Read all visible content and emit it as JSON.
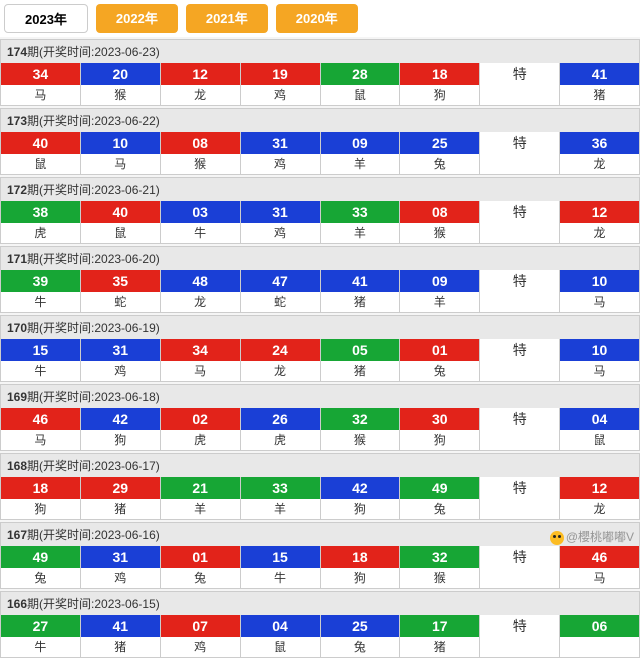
{
  "colors": {
    "red": "#e2231a",
    "blue": "#1a3fd6",
    "green": "#17a635",
    "orange": "#f5a623"
  },
  "tabs": [
    {
      "label": "2023年",
      "active": true
    },
    {
      "label": "2022年",
      "active": false
    },
    {
      "label": "2021年",
      "active": false
    },
    {
      "label": "2020年",
      "active": false
    }
  ],
  "special_label": "特",
  "header_prefix": "期(开奖时间:",
  "header_suffix": ")",
  "watermark": "@櫻桃嘟嘟V",
  "periods": [
    {
      "no": "174",
      "date": "2023-06-23",
      "balls": [
        {
          "n": "34",
          "z": "马",
          "c": "red"
        },
        {
          "n": "20",
          "z": "猴",
          "c": "blue"
        },
        {
          "n": "12",
          "z": "龙",
          "c": "red"
        },
        {
          "n": "19",
          "z": "鸡",
          "c": "red"
        },
        {
          "n": "28",
          "z": "鼠",
          "c": "green"
        },
        {
          "n": "18",
          "z": "狗",
          "c": "red"
        }
      ],
      "special": {
        "n": "41",
        "z": "猪",
        "c": "blue"
      }
    },
    {
      "no": "173",
      "date": "2023-06-22",
      "balls": [
        {
          "n": "40",
          "z": "鼠",
          "c": "red"
        },
        {
          "n": "10",
          "z": "马",
          "c": "blue"
        },
        {
          "n": "08",
          "z": "猴",
          "c": "red"
        },
        {
          "n": "31",
          "z": "鸡",
          "c": "blue"
        },
        {
          "n": "09",
          "z": "羊",
          "c": "blue"
        },
        {
          "n": "25",
          "z": "兔",
          "c": "blue"
        }
      ],
      "special": {
        "n": "36",
        "z": "龙",
        "c": "blue"
      }
    },
    {
      "no": "172",
      "date": "2023-06-21",
      "balls": [
        {
          "n": "38",
          "z": "虎",
          "c": "green"
        },
        {
          "n": "40",
          "z": "鼠",
          "c": "red"
        },
        {
          "n": "03",
          "z": "牛",
          "c": "blue"
        },
        {
          "n": "31",
          "z": "鸡",
          "c": "blue"
        },
        {
          "n": "33",
          "z": "羊",
          "c": "green"
        },
        {
          "n": "08",
          "z": "猴",
          "c": "red"
        }
      ],
      "special": {
        "n": "12",
        "z": "龙",
        "c": "red"
      }
    },
    {
      "no": "171",
      "date": "2023-06-20",
      "balls": [
        {
          "n": "39",
          "z": "牛",
          "c": "green"
        },
        {
          "n": "35",
          "z": "蛇",
          "c": "red"
        },
        {
          "n": "48",
          "z": "龙",
          "c": "blue"
        },
        {
          "n": "47",
          "z": "蛇",
          "c": "blue"
        },
        {
          "n": "41",
          "z": "猪",
          "c": "blue"
        },
        {
          "n": "09",
          "z": "羊",
          "c": "blue"
        }
      ],
      "special": {
        "n": "10",
        "z": "马",
        "c": "blue"
      }
    },
    {
      "no": "170",
      "date": "2023-06-19",
      "balls": [
        {
          "n": "15",
          "z": "牛",
          "c": "blue"
        },
        {
          "n": "31",
          "z": "鸡",
          "c": "blue"
        },
        {
          "n": "34",
          "z": "马",
          "c": "red"
        },
        {
          "n": "24",
          "z": "龙",
          "c": "red"
        },
        {
          "n": "05",
          "z": "猪",
          "c": "green"
        },
        {
          "n": "01",
          "z": "兔",
          "c": "red"
        }
      ],
      "special": {
        "n": "10",
        "z": "马",
        "c": "blue"
      }
    },
    {
      "no": "169",
      "date": "2023-06-18",
      "balls": [
        {
          "n": "46",
          "z": "马",
          "c": "red"
        },
        {
          "n": "42",
          "z": "狗",
          "c": "blue"
        },
        {
          "n": "02",
          "z": "虎",
          "c": "red"
        },
        {
          "n": "26",
          "z": "虎",
          "c": "blue"
        },
        {
          "n": "32",
          "z": "猴",
          "c": "green"
        },
        {
          "n": "30",
          "z": "狗",
          "c": "red"
        }
      ],
      "special": {
        "n": "04",
        "z": "鼠",
        "c": "blue"
      }
    },
    {
      "no": "168",
      "date": "2023-06-17",
      "balls": [
        {
          "n": "18",
          "z": "狗",
          "c": "red"
        },
        {
          "n": "29",
          "z": "猪",
          "c": "red"
        },
        {
          "n": "21",
          "z": "羊",
          "c": "green"
        },
        {
          "n": "33",
          "z": "羊",
          "c": "green"
        },
        {
          "n": "42",
          "z": "狗",
          "c": "blue"
        },
        {
          "n": "49",
          "z": "兔",
          "c": "green"
        }
      ],
      "special": {
        "n": "12",
        "z": "龙",
        "c": "red"
      }
    },
    {
      "no": "167",
      "date": "2023-06-16",
      "balls": [
        {
          "n": "49",
          "z": "兔",
          "c": "green"
        },
        {
          "n": "31",
          "z": "鸡",
          "c": "blue"
        },
        {
          "n": "01",
          "z": "兔",
          "c": "red"
        },
        {
          "n": "15",
          "z": "牛",
          "c": "blue"
        },
        {
          "n": "18",
          "z": "狗",
          "c": "red"
        },
        {
          "n": "32",
          "z": "猴",
          "c": "green"
        }
      ],
      "special": {
        "n": "46",
        "z": "马",
        "c": "red"
      }
    },
    {
      "no": "166",
      "date": "2023-06-15",
      "balls": [
        {
          "n": "27",
          "z": "牛",
          "c": "green"
        },
        {
          "n": "41",
          "z": "猪",
          "c": "blue"
        },
        {
          "n": "07",
          "z": "鸡",
          "c": "red"
        },
        {
          "n": "04",
          "z": "鼠",
          "c": "blue"
        },
        {
          "n": "25",
          "z": "兔",
          "c": "blue"
        },
        {
          "n": "17",
          "z": "猪",
          "c": "green"
        }
      ],
      "special": {
        "n": "06",
        "z": "",
        "c": "green"
      }
    }
  ]
}
